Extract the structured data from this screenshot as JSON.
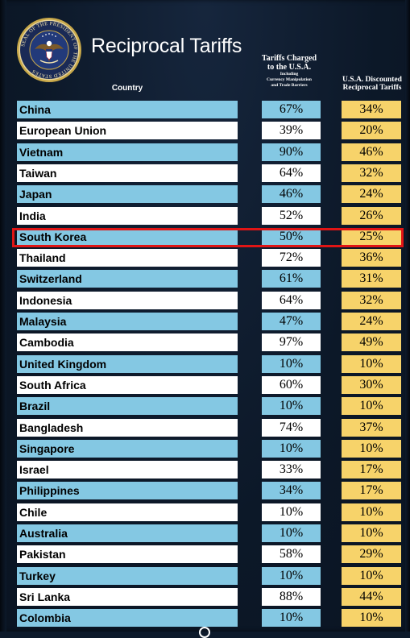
{
  "title": "Reciprocal Tariffs",
  "seal": {
    "text_top": "SEAL OF THE PRESIDENT OF THE UNITED STATES",
    "emblem": "presidential-eagle-seal-icon"
  },
  "headers": {
    "country": "Country",
    "charged_line1": "Tariffs Charged",
    "charged_line2": "to the U.S.A.",
    "charged_line3": "Including",
    "charged_line4": "Currency Manipulation",
    "charged_line5": "and Trade Barriers",
    "discounted_line1": "U.S.A. Discounted",
    "discounted_line2": "Reciprocal Tariffs"
  },
  "highlighted_row": "South Korea",
  "colors": {
    "row_blue": "#84c8e3",
    "row_white": "#ffffff",
    "discount_yellow": "#f7d36a",
    "highlight_red": "#e01515",
    "background": "#0d1a2b"
  },
  "rows": [
    {
      "country": "China",
      "charged": "67%",
      "discounted": "34%"
    },
    {
      "country": "European Union",
      "charged": "39%",
      "discounted": "20%"
    },
    {
      "country": "Vietnam",
      "charged": "90%",
      "discounted": "46%"
    },
    {
      "country": "Taiwan",
      "charged": "64%",
      "discounted": "32%"
    },
    {
      "country": "Japan",
      "charged": "46%",
      "discounted": "24%"
    },
    {
      "country": "India",
      "charged": "52%",
      "discounted": "26%"
    },
    {
      "country": "South Korea",
      "charged": "50%",
      "discounted": "25%"
    },
    {
      "country": "Thailand",
      "charged": "72%",
      "discounted": "36%"
    },
    {
      "country": "Switzerland",
      "charged": "61%",
      "discounted": "31%"
    },
    {
      "country": "Indonesia",
      "charged": "64%",
      "discounted": "32%"
    },
    {
      "country": "Malaysia",
      "charged": "47%",
      "discounted": "24%"
    },
    {
      "country": "Cambodia",
      "charged": "97%",
      "discounted": "49%"
    },
    {
      "country": "United Kingdom",
      "charged": "10%",
      "discounted": "10%"
    },
    {
      "country": "South Africa",
      "charged": "60%",
      "discounted": "30%"
    },
    {
      "country": "Brazil",
      "charged": "10%",
      "discounted": "10%"
    },
    {
      "country": "Bangladesh",
      "charged": "74%",
      "discounted": "37%"
    },
    {
      "country": "Singapore",
      "charged": "10%",
      "discounted": "10%"
    },
    {
      "country": "Israel",
      "charged": "33%",
      "discounted": "17%"
    },
    {
      "country": "Philippines",
      "charged": "34%",
      "discounted": "17%"
    },
    {
      "country": "Chile",
      "charged": "10%",
      "discounted": "10%"
    },
    {
      "country": "Australia",
      "charged": "10%",
      "discounted": "10%"
    },
    {
      "country": "Pakistan",
      "charged": "58%",
      "discounted": "29%"
    },
    {
      "country": "Turkey",
      "charged": "10%",
      "discounted": "10%"
    },
    {
      "country": "Sri Lanka",
      "charged": "88%",
      "discounted": "44%"
    },
    {
      "country": "Colombia",
      "charged": "10%",
      "discounted": "10%"
    }
  ]
}
